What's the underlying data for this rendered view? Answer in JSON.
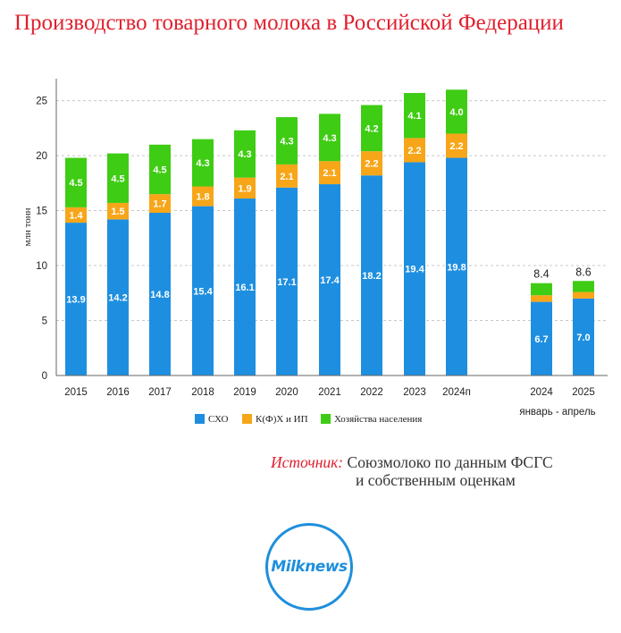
{
  "colors": {
    "sho": "#1e8fe0",
    "kfh": "#f7a619",
    "households": "#3fcc14",
    "title": "#e0202e",
    "logo": "#1e8fdc"
  },
  "chart_data": {
    "type": "bar",
    "stacked": true,
    "title": "Производство товарного молока в Российской Федерации",
    "ylabel": "млн тонн",
    "xlabel": "",
    "ylim": [
      0,
      27
    ],
    "yticks": [
      0,
      5,
      10,
      15,
      20,
      25
    ],
    "grid": true,
    "legend_position": "bottom",
    "categories": [
      "2015",
      "2016",
      "2017",
      "2018",
      "2019",
      "2020",
      "2021",
      "2022",
      "2023",
      "2024п",
      "2024",
      "2025"
    ],
    "period_note": "январь - апрель",
    "series": [
      {
        "name": "СХО",
        "values": [
          13.9,
          14.2,
          14.8,
          15.4,
          16.1,
          17.1,
          17.4,
          18.2,
          19.4,
          19.8,
          6.7,
          7.0
        ],
        "labels": [
          "13.9",
          "14.2",
          "14.8",
          "15.4",
          "16.1",
          "17.1",
          "17.4",
          "18.2",
          "19.4",
          "19.8",
          "6.7",
          "7.0"
        ]
      },
      {
        "name": "К(Ф)Х и ИП",
        "values": [
          1.4,
          1.5,
          1.7,
          1.8,
          1.9,
          2.1,
          2.1,
          2.2,
          2.2,
          2.2,
          0.6,
          0.6
        ],
        "labels": [
          "1.4",
          "1.5",
          "1.7",
          "1.8",
          "1.9",
          "2.1",
          "2.1",
          "2.2",
          "2.2",
          "2.2",
          "",
          ""
        ]
      },
      {
        "name": "Хозяйства населения",
        "values": [
          4.5,
          4.5,
          4.5,
          4.3,
          4.3,
          4.3,
          4.3,
          4.2,
          4.1,
          4.0,
          1.1,
          1.0
        ],
        "labels": [
          "4.5",
          "4.5",
          "4.5",
          "4.3",
          "4.3",
          "4.3",
          "4.3",
          "4.2",
          "4.1",
          "4.0",
          "",
          ""
        ]
      }
    ],
    "totals_labels": [
      "",
      "",
      "",
      "",
      "",
      "",
      "",
      "",
      "",
      "",
      "8.4",
      "8.6"
    ]
  },
  "source": {
    "label": "Источник:",
    "line1": "Союзмолоко по данным ФСГС",
    "line2": "и собственным оценкам"
  },
  "logo": {
    "text": "Milknews"
  }
}
